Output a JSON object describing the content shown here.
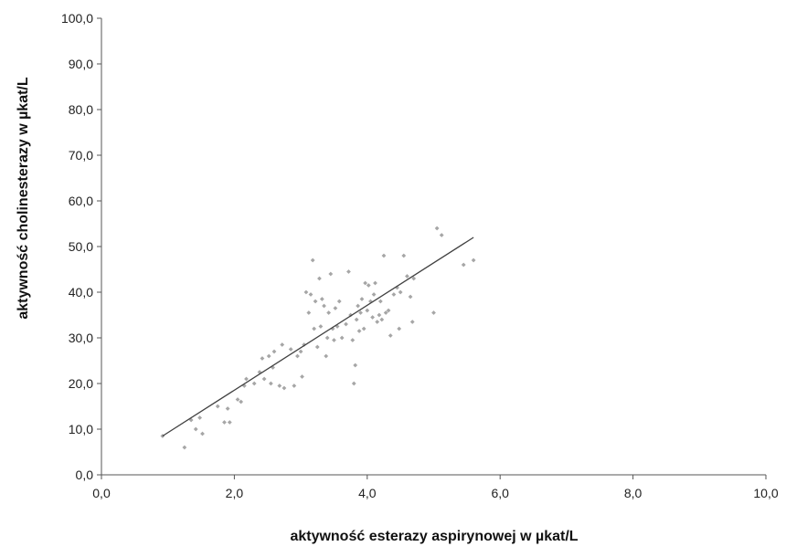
{
  "chart_data": {
    "type": "scatter",
    "title": "",
    "xlabel": "aktywność esterazy aspirynowej w µkat/L",
    "ylabel": "aktywność cholinesterazy w µkat/L",
    "xlim": [
      0,
      10
    ],
    "ylim": [
      0,
      100
    ],
    "x_ticks": [
      "0,0",
      "2,0",
      "4,0",
      "6,0",
      "8,0",
      "10,0"
    ],
    "y_ticks": [
      "0,0",
      "10,0",
      "20,0",
      "30,0",
      "40,0",
      "50,0",
      "60,0",
      "70,0",
      "80,0",
      "90,0",
      "100,0"
    ],
    "grid": false,
    "legend": "none",
    "colors": {
      "points": "#a6a6a6",
      "trendline": "#404040",
      "axis": "#555555"
    },
    "trendline": {
      "x": [
        0.92,
        5.6
      ],
      "y": [
        8.5,
        52.0
      ]
    },
    "points": [
      {
        "x": 0.92,
        "y": 8.5
      },
      {
        "x": 1.25,
        "y": 6.0
      },
      {
        "x": 1.35,
        "y": 12.0
      },
      {
        "x": 1.42,
        "y": 10.0
      },
      {
        "x": 1.48,
        "y": 12.5
      },
      {
        "x": 1.52,
        "y": 9.0
      },
      {
        "x": 1.75,
        "y": 15.0
      },
      {
        "x": 1.85,
        "y": 11.5
      },
      {
        "x": 1.9,
        "y": 14.5
      },
      {
        "x": 1.93,
        "y": 11.5
      },
      {
        "x": 2.05,
        "y": 16.5
      },
      {
        "x": 2.1,
        "y": 16.0
      },
      {
        "x": 2.15,
        "y": 19.5
      },
      {
        "x": 2.18,
        "y": 21.0
      },
      {
        "x": 2.3,
        "y": 20.0
      },
      {
        "x": 2.38,
        "y": 22.5
      },
      {
        "x": 2.42,
        "y": 25.5
      },
      {
        "x": 2.45,
        "y": 21.0
      },
      {
        "x": 2.52,
        "y": 26.0
      },
      {
        "x": 2.55,
        "y": 20.0
      },
      {
        "x": 2.58,
        "y": 23.5
      },
      {
        "x": 2.6,
        "y": 27.0
      },
      {
        "x": 2.68,
        "y": 19.5
      },
      {
        "x": 2.72,
        "y": 28.5
      },
      {
        "x": 2.75,
        "y": 19.0
      },
      {
        "x": 2.85,
        "y": 27.5
      },
      {
        "x": 2.9,
        "y": 19.5
      },
      {
        "x": 2.95,
        "y": 26.0
      },
      {
        "x": 3.0,
        "y": 27.0
      },
      {
        "x": 3.02,
        "y": 21.5
      },
      {
        "x": 3.05,
        "y": 28.5
      },
      {
        "x": 3.08,
        "y": 40.0
      },
      {
        "x": 3.12,
        "y": 35.5
      },
      {
        "x": 3.15,
        "y": 39.5
      },
      {
        "x": 3.18,
        "y": 47.0
      },
      {
        "x": 3.2,
        "y": 32.0
      },
      {
        "x": 3.22,
        "y": 38.0
      },
      {
        "x": 3.25,
        "y": 28.0
      },
      {
        "x": 3.28,
        "y": 43.0
      },
      {
        "x": 3.3,
        "y": 32.5
      },
      {
        "x": 3.32,
        "y": 38.5
      },
      {
        "x": 3.35,
        "y": 37.0
      },
      {
        "x": 3.38,
        "y": 26.0
      },
      {
        "x": 3.4,
        "y": 30.0
      },
      {
        "x": 3.42,
        "y": 35.5
      },
      {
        "x": 3.45,
        "y": 44.0
      },
      {
        "x": 3.48,
        "y": 32.0
      },
      {
        "x": 3.5,
        "y": 29.5
      },
      {
        "x": 3.52,
        "y": 36.5
      },
      {
        "x": 3.55,
        "y": 32.5
      },
      {
        "x": 3.58,
        "y": 38.0
      },
      {
        "x": 3.62,
        "y": 30.0
      },
      {
        "x": 3.68,
        "y": 33.0
      },
      {
        "x": 3.72,
        "y": 44.5
      },
      {
        "x": 3.75,
        "y": 35.0
      },
      {
        "x": 3.78,
        "y": 29.5
      },
      {
        "x": 3.8,
        "y": 20.0
      },
      {
        "x": 3.82,
        "y": 24.0
      },
      {
        "x": 3.84,
        "y": 34.0
      },
      {
        "x": 3.86,
        "y": 37.0
      },
      {
        "x": 3.88,
        "y": 31.5
      },
      {
        "x": 3.9,
        "y": 35.5
      },
      {
        "x": 3.92,
        "y": 38.5
      },
      {
        "x": 3.95,
        "y": 32.0
      },
      {
        "x": 3.97,
        "y": 42.0
      },
      {
        "x": 4.0,
        "y": 36.0
      },
      {
        "x": 4.02,
        "y": 41.5
      },
      {
        "x": 4.05,
        "y": 38.0
      },
      {
        "x": 4.08,
        "y": 34.5
      },
      {
        "x": 4.1,
        "y": 39.5
      },
      {
        "x": 4.12,
        "y": 42.0
      },
      {
        "x": 4.15,
        "y": 33.5
      },
      {
        "x": 4.18,
        "y": 35.0
      },
      {
        "x": 4.2,
        "y": 38.0
      },
      {
        "x": 4.22,
        "y": 34.0
      },
      {
        "x": 4.25,
        "y": 48.0
      },
      {
        "x": 4.28,
        "y": 35.5
      },
      {
        "x": 4.32,
        "y": 36.0
      },
      {
        "x": 4.35,
        "y": 30.5
      },
      {
        "x": 4.4,
        "y": 39.5
      },
      {
        "x": 4.45,
        "y": 41.0
      },
      {
        "x": 4.48,
        "y": 32.0
      },
      {
        "x": 4.5,
        "y": 40.0
      },
      {
        "x": 4.55,
        "y": 48.0
      },
      {
        "x": 4.6,
        "y": 43.5
      },
      {
        "x": 4.65,
        "y": 39.0
      },
      {
        "x": 4.68,
        "y": 33.5
      },
      {
        "x": 4.7,
        "y": 43.0
      },
      {
        "x": 5.0,
        "y": 35.5
      },
      {
        "x": 5.05,
        "y": 54.0
      },
      {
        "x": 5.12,
        "y": 52.5
      },
      {
        "x": 5.45,
        "y": 46.0
      },
      {
        "x": 5.6,
        "y": 47.0
      }
    ]
  }
}
